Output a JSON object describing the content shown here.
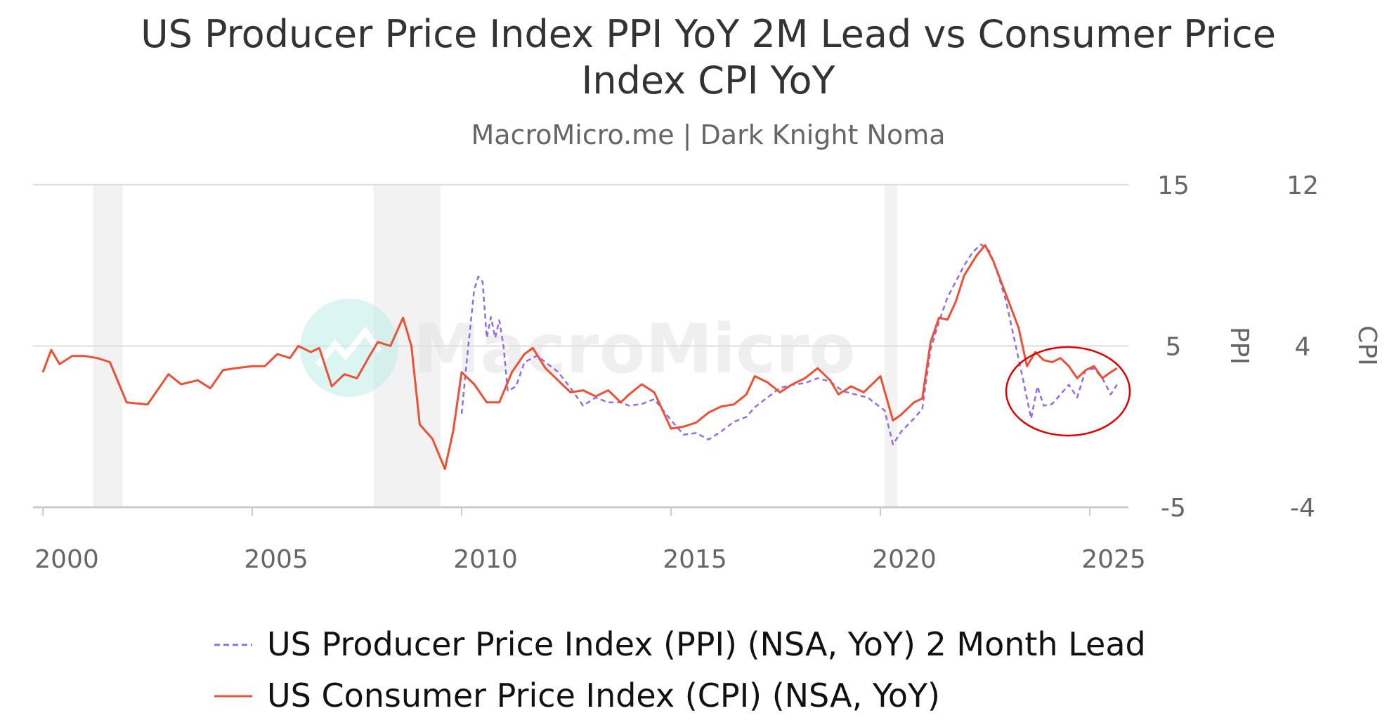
{
  "chart_data": {
    "type": "line",
    "title_line1": "US Producer Price Index PPI YoY 2M Lead vs Consumer Price",
    "title_line2": "Index CPI YoY",
    "subtitle": "MacroMicro.me | Dark Knight Noma",
    "watermark": "MacroMicro",
    "x_range": [
      1999.9,
      2025.9
    ],
    "x_ticks": [
      "2000",
      "2005",
      "2010",
      "2015",
      "2020",
      "2025"
    ],
    "y_left": {
      "label": "PPI",
      "range": [
        -5,
        15
      ],
      "ticks": [
        "15",
        "5",
        "-5"
      ]
    },
    "y_right": {
      "label": "CPI",
      "range": [
        -4,
        12
      ],
      "ticks": [
        "12",
        "4",
        "-4"
      ]
    },
    "grid": true,
    "legend_position": "bottom",
    "recessions": [
      [
        2001.2,
        2001.9
      ],
      [
        2007.9,
        2009.5
      ],
      [
        2020.1,
        2020.4
      ]
    ],
    "annotation": "ellipse around 2023.5-2025.9",
    "series": [
      {
        "name": "US Producer Price Index (PPI) (NSA, YoY) 2 Month Lead",
        "color": "#8f6ee8",
        "dash": true,
        "axis": "PPI",
        "points": [
          [
            2010.0,
            0.8
          ],
          [
            2010.1,
            3.5
          ],
          [
            2010.2,
            6.0
          ],
          [
            2010.3,
            8.5
          ],
          [
            2010.4,
            9.3
          ],
          [
            2010.5,
            9.0
          ],
          [
            2010.6,
            5.5
          ],
          [
            2010.7,
            6.8
          ],
          [
            2010.8,
            5.5
          ],
          [
            2010.9,
            6.6
          ],
          [
            2011.0,
            5.0
          ],
          [
            2011.1,
            2.2
          ],
          [
            2011.3,
            2.5
          ],
          [
            2011.5,
            4.0
          ],
          [
            2011.8,
            4.4
          ],
          [
            2012.0,
            4.0
          ],
          [
            2012.3,
            3.4
          ],
          [
            2012.6,
            2.4
          ],
          [
            2012.9,
            1.3
          ],
          [
            2013.2,
            1.8
          ],
          [
            2013.5,
            1.5
          ],
          [
            2013.8,
            1.5
          ],
          [
            2014.0,
            1.3
          ],
          [
            2014.3,
            1.4
          ],
          [
            2014.6,
            1.7
          ],
          [
            2015.0,
            0.4
          ],
          [
            2015.3,
            -0.5
          ],
          [
            2015.6,
            -0.4
          ],
          [
            2015.9,
            -0.8
          ],
          [
            2016.2,
            -0.3
          ],
          [
            2016.5,
            0.3
          ],
          [
            2016.8,
            0.6
          ],
          [
            2017.0,
            1.2
          ],
          [
            2017.3,
            1.8
          ],
          [
            2017.6,
            2.4
          ],
          [
            2017.9,
            2.6
          ],
          [
            2018.2,
            2.7
          ],
          [
            2018.5,
            3.0
          ],
          [
            2018.8,
            2.8
          ],
          [
            2019.1,
            2.2
          ],
          [
            2019.4,
            2.0
          ],
          [
            2019.7,
            1.8
          ],
          [
            2019.9,
            1.4
          ],
          [
            2020.1,
            1.0
          ],
          [
            2020.3,
            -1.1
          ],
          [
            2020.5,
            -0.3
          ],
          [
            2020.8,
            0.5
          ],
          [
            2021.0,
            1.1
          ],
          [
            2021.2,
            4.8
          ],
          [
            2021.4,
            6.5
          ],
          [
            2021.6,
            8.0
          ],
          [
            2021.8,
            9.0
          ],
          [
            2022.0,
            10.0
          ],
          [
            2022.2,
            10.8
          ],
          [
            2022.4,
            11.3
          ],
          [
            2022.6,
            10.9
          ],
          [
            2022.8,
            9.5
          ],
          [
            2023.0,
            7.8
          ],
          [
            2023.2,
            5.4
          ],
          [
            2023.4,
            3.0
          ],
          [
            2023.6,
            0.5
          ],
          [
            2023.75,
            2.5
          ],
          [
            2023.9,
            1.3
          ],
          [
            2024.1,
            1.4
          ],
          [
            2024.3,
            2.0
          ],
          [
            2024.5,
            2.6
          ],
          [
            2024.7,
            1.8
          ],
          [
            2024.9,
            3.5
          ],
          [
            2025.1,
            3.6
          ],
          [
            2025.3,
            3.0
          ],
          [
            2025.5,
            2.0
          ],
          [
            2025.65,
            2.6
          ]
        ]
      },
      {
        "name": "US Consumer Price Index (CPI) (NSA, YoY)",
        "color": "#ee5036",
        "dash": false,
        "axis": "CPI",
        "points": [
          [
            2000.0,
            2.7
          ],
          [
            2000.2,
            3.8
          ],
          [
            2000.4,
            3.1
          ],
          [
            2000.7,
            3.5
          ],
          [
            2001.0,
            3.5
          ],
          [
            2001.3,
            3.4
          ],
          [
            2001.6,
            3.2
          ],
          [
            2002.0,
            1.2
          ],
          [
            2002.5,
            1.1
          ],
          [
            2003.0,
            2.6
          ],
          [
            2003.3,
            2.1
          ],
          [
            2003.7,
            2.3
          ],
          [
            2004.0,
            1.9
          ],
          [
            2004.3,
            2.8
          ],
          [
            2004.6,
            2.9
          ],
          [
            2005.0,
            3.0
          ],
          [
            2005.3,
            3.0
          ],
          [
            2005.6,
            3.6
          ],
          [
            2005.9,
            3.4
          ],
          [
            2006.1,
            4.0
          ],
          [
            2006.4,
            3.7
          ],
          [
            2006.6,
            3.9
          ],
          [
            2006.9,
            2.0
          ],
          [
            2007.2,
            2.6
          ],
          [
            2007.5,
            2.4
          ],
          [
            2007.8,
            3.5
          ],
          [
            2008.0,
            4.2
          ],
          [
            2008.3,
            4.0
          ],
          [
            2008.6,
            5.4
          ],
          [
            2008.8,
            4.0
          ],
          [
            2009.0,
            0.1
          ],
          [
            2009.3,
            -0.6
          ],
          [
            2009.6,
            -2.1
          ],
          [
            2009.8,
            -0.2
          ],
          [
            2010.0,
            2.7
          ],
          [
            2010.3,
            2.1
          ],
          [
            2010.6,
            1.2
          ],
          [
            2010.9,
            1.2
          ],
          [
            2011.2,
            2.7
          ],
          [
            2011.5,
            3.6
          ],
          [
            2011.7,
            3.9
          ],
          [
            2012.0,
            2.9
          ],
          [
            2012.3,
            2.3
          ],
          [
            2012.6,
            1.7
          ],
          [
            2012.9,
            1.8
          ],
          [
            2013.2,
            1.5
          ],
          [
            2013.5,
            1.8
          ],
          [
            2013.8,
            1.2
          ],
          [
            2014.0,
            1.6
          ],
          [
            2014.3,
            2.1
          ],
          [
            2014.6,
            1.7
          ],
          [
            2015.0,
            -0.1
          ],
          [
            2015.3,
            0.0
          ],
          [
            2015.6,
            0.2
          ],
          [
            2015.9,
            0.7
          ],
          [
            2016.2,
            1.0
          ],
          [
            2016.5,
            1.1
          ],
          [
            2016.8,
            1.6
          ],
          [
            2017.0,
            2.5
          ],
          [
            2017.3,
            2.2
          ],
          [
            2017.6,
            1.7
          ],
          [
            2017.9,
            2.1
          ],
          [
            2018.2,
            2.4
          ],
          [
            2018.5,
            2.9
          ],
          [
            2018.8,
            2.3
          ],
          [
            2019.0,
            1.6
          ],
          [
            2019.3,
            2.0
          ],
          [
            2019.6,
            1.7
          ],
          [
            2019.9,
            2.3
          ],
          [
            2020.0,
            2.5
          ],
          [
            2020.3,
            0.3
          ],
          [
            2020.5,
            0.6
          ],
          [
            2020.8,
            1.2
          ],
          [
            2021.0,
            1.4
          ],
          [
            2021.2,
            4.2
          ],
          [
            2021.4,
            5.4
          ],
          [
            2021.6,
            5.3
          ],
          [
            2021.8,
            6.2
          ],
          [
            2022.0,
            7.5
          ],
          [
            2022.3,
            8.5
          ],
          [
            2022.5,
            9.0
          ],
          [
            2022.7,
            8.2
          ],
          [
            2022.9,
            7.1
          ],
          [
            2023.1,
            6.0
          ],
          [
            2023.3,
            4.9
          ],
          [
            2023.5,
            3.0
          ],
          [
            2023.7,
            3.7
          ],
          [
            2023.9,
            3.3
          ],
          [
            2024.1,
            3.2
          ],
          [
            2024.3,
            3.4
          ],
          [
            2024.5,
            3.0
          ],
          [
            2024.7,
            2.4
          ],
          [
            2024.9,
            2.8
          ],
          [
            2025.1,
            3.0
          ],
          [
            2025.3,
            2.4
          ],
          [
            2025.5,
            2.7
          ],
          [
            2025.65,
            2.9
          ]
        ]
      }
    ]
  }
}
